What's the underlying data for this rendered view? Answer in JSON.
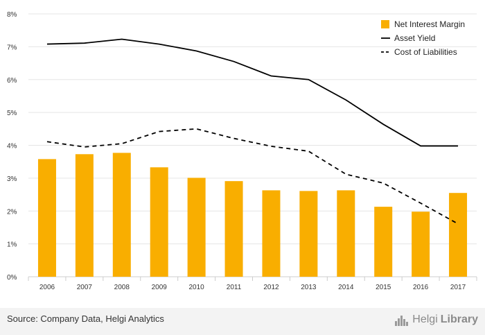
{
  "source_text": "Source: Company Data, Helgi Analytics",
  "brand": {
    "part1": "Helgi",
    "part2": "Library",
    "icon": "helgi-library-logo-icon"
  },
  "colors": {
    "bar": "#F9AE00",
    "line": "#000000",
    "grid": "#e5e5e5",
    "axis_text": "#333333",
    "footer_bg": "#f3f3f3"
  },
  "chart_data": {
    "type": "bar",
    "title": "",
    "xlabel": "",
    "ylabel": "",
    "categories": [
      "2006",
      "2007",
      "2008",
      "2009",
      "2010",
      "2011",
      "2012",
      "2013",
      "2014",
      "2015",
      "2016",
      "2017"
    ],
    "ylim": [
      0,
      8
    ],
    "y_ticks": [
      0,
      1,
      2,
      3,
      4,
      5,
      6,
      7,
      8
    ],
    "y_tick_labels": [
      "0%",
      "1%",
      "2%",
      "3%",
      "4%",
      "5%",
      "6%",
      "7%",
      "8%"
    ],
    "grid": true,
    "legend_position": "top-right",
    "series": [
      {
        "name": "Net Interest Margin",
        "kind": "bar",
        "values": [
          3.58,
          3.73,
          3.77,
          3.33,
          3.01,
          2.91,
          2.63,
          2.61,
          2.63,
          2.13,
          1.98,
          2.55
        ]
      },
      {
        "name": "Asset Yield",
        "kind": "line",
        "style": "solid",
        "values": [
          7.08,
          7.11,
          7.23,
          7.08,
          6.87,
          6.55,
          6.11,
          6.0,
          5.38,
          4.64,
          3.98,
          3.98
        ]
      },
      {
        "name": "Cost of Liabilities",
        "kind": "line",
        "style": "dashed",
        "values": [
          4.11,
          3.95,
          4.05,
          4.42,
          4.5,
          4.21,
          3.97,
          3.82,
          3.12,
          2.85,
          2.24,
          1.61
        ]
      }
    ]
  }
}
